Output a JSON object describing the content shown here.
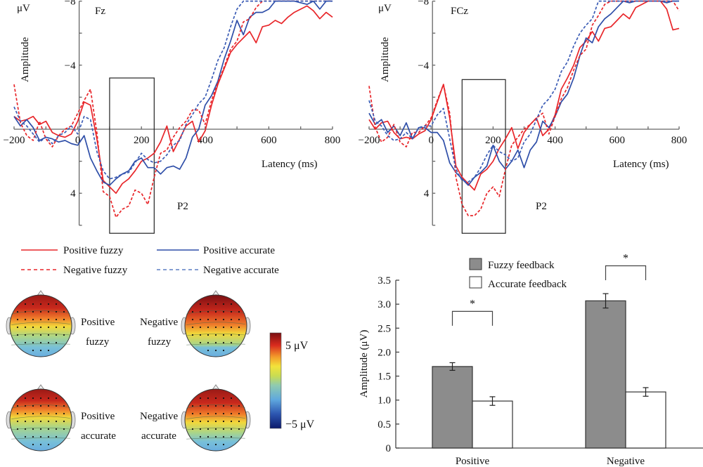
{
  "chart_data": [
    {
      "type": "line",
      "panel": "erp-fz",
      "title": "Fz",
      "xlabel": "Latency (ms)",
      "ylabel": "Amplitude",
      "yunit": "μV",
      "xlim": [
        -200,
        800
      ],
      "ylim": [
        7,
        -8
      ],
      "y_inverted": true,
      "x_ticks": [
        -200,
        0,
        200,
        400,
        600,
        800
      ],
      "x_tick_labels": [
        "−200",
        "0",
        "200",
        "400",
        "600",
        "800"
      ],
      "y_tick_labels": [
        {
          "v": -8,
          "t": "−8"
        },
        {
          "v": -4,
          "t": "−4"
        },
        {
          "v": 4,
          "t": "4"
        }
      ],
      "y_minor_ticks": [
        -8,
        -6,
        -4,
        -2,
        2,
        4,
        6
      ],
      "annotation": "P2",
      "window_ms": [
        100,
        240
      ],
      "window_uv": [
        -3.2,
        6.5
      ],
      "x": [
        -200,
        -180,
        -160,
        -140,
        -120,
        -100,
        -80,
        -60,
        -40,
        -20,
        0,
        20,
        40,
        60,
        80,
        100,
        120,
        140,
        160,
        180,
        200,
        220,
        240,
        260,
        280,
        300,
        320,
        340,
        360,
        380,
        400,
        420,
        440,
        460,
        480,
        500,
        520,
        540,
        560,
        580,
        600,
        620,
        640,
        660,
        680,
        700,
        720,
        740,
        760,
        780,
        800
      ],
      "series": [
        {
          "name": "Positive fuzzy",
          "color": "#e8262a",
          "dash": false,
          "values": [
            -0.8,
            -0.5,
            -0.6,
            -0.8,
            -0.3,
            -0.5,
            0.2,
            0.4,
            0.5,
            0.3,
            -0.5,
            -1.7,
            -1.5,
            0.6,
            3.2,
            3.6,
            4.0,
            3.4,
            3.1,
            2.6,
            2.0,
            1.8,
            1.5,
            0.8,
            -0.2,
            1.4,
            0.6,
            -0.2,
            -0.5,
            0.8,
            0.1,
            -1.5,
            -2.8,
            -3.8,
            -4.8,
            -5.3,
            -5.7,
            -6.1,
            -5.4,
            -6.4,
            -6.5,
            -6.8,
            -6.6,
            -7.0,
            -7.3,
            -7.5,
            -7.7,
            -7.4,
            -6.9,
            -7.3,
            -7.0
          ]
        },
        {
          "name": "Positive accurate",
          "color": "#2e4ea8",
          "dash": false,
          "values": [
            -0.8,
            -0.2,
            -0.6,
            -0.1,
            0.7,
            0.5,
            0.6,
            0.8,
            0.7,
            0.9,
            1.0,
            0.4,
            1.8,
            2.6,
            3.3,
            3.5,
            3.1,
            2.8,
            2.6,
            2.0,
            1.8,
            2.4,
            2.4,
            2.8,
            2.4,
            2.3,
            2.5,
            1.8,
            0.5,
            0.0,
            -1.5,
            -2.1,
            -3.0,
            -4.4,
            -5.5,
            -6.8,
            -5.9,
            -7.0,
            -7.3,
            -7.3,
            -7.5,
            -8.0,
            -8.1,
            -8.0,
            -8.0,
            -7.9,
            -7.8,
            -8.0,
            -7.5,
            -8.0,
            -8.5
          ]
        },
        {
          "name": "Negative fuzzy",
          "color": "#e8262a",
          "dash": true,
          "values": [
            -2.8,
            -0.4,
            0.4,
            0.7,
            -0.5,
            0.6,
            1.1,
            0.4,
            0.0,
            -0.2,
            -1.0,
            -1.8,
            -2.5,
            0.2,
            3.9,
            4.2,
            5.5,
            5.0,
            4.8,
            3.8,
            4.0,
            4.7,
            3.0,
            1.5,
            1.3,
            0.5,
            -0.1,
            -0.5,
            -1.2,
            -1.2,
            -0.3,
            -1.8,
            -2.9,
            -3.9,
            -5.0,
            -5.5,
            -6.7,
            -6.9,
            -7.6,
            -8.2,
            -8.2,
            -8.8,
            -8.6,
            -8.9,
            -8.8,
            -9.0,
            -8.8,
            -8.9,
            -8.6,
            -8.9,
            -8.2
          ]
        },
        {
          "name": "Negative accurate",
          "color": "#2e4ea8",
          "dash": true,
          "values": [
            -1.4,
            -0.5,
            -0.2,
            0.3,
            0.8,
            0.5,
            0.9,
            0.4,
            0.2,
            -0.2,
            0.3,
            -0.8,
            -0.6,
            1.4,
            2.6,
            3.1,
            3.0,
            2.8,
            2.7,
            2.1,
            1.5,
            1.9,
            2.1,
            2.0,
            1.6,
            1.0,
            0.7,
            -0.3,
            -0.9,
            -1.6,
            -2.0,
            -3.1,
            -4.3,
            -5.1,
            -6.4,
            -7.5,
            -8.6,
            -8.6,
            -8.7,
            -8.8,
            -8.9,
            -8.8,
            -8.8,
            -8.7,
            -8.9,
            -8.9,
            -8.8,
            -8.9,
            -8.9,
            -8.8,
            -8.9
          ]
        }
      ]
    },
    {
      "type": "line",
      "panel": "erp-fcz",
      "title": "FCz",
      "xlabel": "Latency (ms)",
      "ylabel": "Amplitude",
      "yunit": "μV",
      "xlim": [
        -200,
        800
      ],
      "ylim": [
        7,
        -8
      ],
      "y_inverted": true,
      "x_ticks": [
        -200,
        0,
        200,
        400,
        600,
        800
      ],
      "x_tick_labels": [
        "−200",
        "0",
        "200",
        "400",
        "600",
        "800"
      ],
      "y_tick_labels": [
        {
          "v": -8,
          "t": "−8"
        },
        {
          "v": -4,
          "t": "−4"
        },
        {
          "v": 4,
          "t": "4"
        }
      ],
      "y_minor_ticks": [
        -8,
        -6,
        -4,
        -2,
        2,
        4,
        6
      ],
      "annotation": "P2",
      "window_ms": [
        100,
        240
      ],
      "window_uv": [
        -3.1,
        6.5
      ],
      "x": [
        -200,
        -180,
        -160,
        -140,
        -120,
        -100,
        -80,
        -60,
        -40,
        -20,
        0,
        20,
        40,
        60,
        80,
        100,
        120,
        140,
        160,
        180,
        200,
        220,
        240,
        260,
        280,
        300,
        320,
        340,
        360,
        380,
        400,
        420,
        440,
        460,
        480,
        500,
        520,
        540,
        560,
        580,
        600,
        620,
        640,
        660,
        680,
        700,
        720,
        740,
        760,
        780,
        800
      ],
      "series": [
        {
          "name": "Positive fuzzy",
          "color": "#e8262a",
          "dash": false,
          "values": [
            -0.6,
            0.0,
            -0.4,
            -0.5,
            0.2,
            0.6,
            0.5,
            0.6,
            0.3,
            0.1,
            -0.6,
            -1.7,
            -2.8,
            -0.7,
            2.3,
            3.0,
            3.4,
            3.8,
            2.8,
            2.5,
            2.0,
            1.2,
            0.6,
            -0.1,
            1.2,
            0.2,
            -0.3,
            -0.7,
            0.4,
            0.0,
            -0.9,
            -2.5,
            -3.2,
            -4.0,
            -5.1,
            -5.5,
            -6.1,
            -5.5,
            -6.3,
            -6.4,
            -6.8,
            -7.2,
            -6.9,
            -7.6,
            -7.8,
            -8.0,
            -8.0,
            -8.1,
            -7.5,
            -6.2,
            -6.3
          ]
        },
        {
          "name": "Positive accurate",
          "color": "#2e4ea8",
          "dash": false,
          "values": [
            -1.0,
            -0.3,
            -0.6,
            0.2,
            -0.2,
            0.4,
            -0.4,
            0.6,
            -0.1,
            -0.1,
            0.2,
            0.2,
            0.7,
            2.1,
            2.7,
            3.1,
            3.5,
            3.0,
            2.7,
            2.3,
            1.0,
            2.0,
            2.5,
            2.0,
            1.3,
            2.4,
            1.3,
            0.8,
            -0.5,
            -0.1,
            -0.8,
            -1.7,
            -2.2,
            -3.2,
            -4.6,
            -5.7,
            -5.4,
            -6.4,
            -6.9,
            -7.2,
            -7.6,
            -8.2,
            -7.9,
            -8.2,
            -8.7,
            -8.5,
            -8.0,
            -8.1,
            -7.9,
            -8.1,
            -8.1
          ]
        },
        {
          "name": "Negative fuzzy",
          "color": "#e8262a",
          "dash": true,
          "values": [
            -2.7,
            -0.1,
            0.8,
            0.5,
            -0.3,
            0.8,
            1.1,
            0.2,
            0.2,
            -0.2,
            -0.7,
            -1.8,
            -2.8,
            -1.0,
            3.0,
            4.7,
            5.4,
            5.4,
            5.0,
            4.0,
            3.6,
            4.2,
            2.5,
            1.0,
            0.5,
            0.0,
            -0.3,
            -0.7,
            -1.0,
            0.3,
            -0.8,
            -1.9,
            -2.6,
            -3.7,
            -4.6,
            -5.0,
            -6.5,
            -7.1,
            -7.8,
            -8.5,
            -9.0,
            -8.8,
            -8.6,
            -8.7,
            -8.6,
            -8.3,
            -8.6,
            -8.8,
            -8.4,
            -8.4,
            -7.4
          ]
        },
        {
          "name": "Negative accurate",
          "color": "#2e4ea8",
          "dash": true,
          "values": [
            -1.8,
            -0.5,
            -0.2,
            0.4,
            0.7,
            0.6,
            0.2,
            0.6,
            -0.1,
            -0.2,
            -0.2,
            -0.9,
            -1.3,
            0.6,
            2.5,
            3.2,
            3.3,
            3.0,
            2.4,
            1.6,
            1.0,
            1.4,
            1.6,
            2.0,
            1.8,
            0.8,
            0.3,
            -0.6,
            -1.5,
            -1.9,
            -2.5,
            -3.6,
            -4.2,
            -5.2,
            -6.0,
            -6.5,
            -6.9,
            -8.0,
            -8.7,
            -8.9,
            -8.9,
            -9.0,
            -9.2,
            -9.1,
            -9.0,
            -9.2,
            -8.8,
            -8.7,
            -8.3,
            -8.5,
            -9.0
          ]
        }
      ]
    },
    {
      "type": "bar",
      "panel": "p2-amplitude",
      "title": "",
      "xlabel": "",
      "ylabel": "Amplitude (μV)",
      "ylim": [
        0,
        3.5
      ],
      "y_ticks": [
        0,
        0.5,
        1.0,
        1.5,
        2.0,
        2.5,
        3.0,
        3.5
      ],
      "y_tick_labels": [
        "0",
        "0.5",
        "1.0",
        "1.5",
        "2.0",
        "2.5",
        "3.0",
        "3.5"
      ],
      "categories": [
        "Positive",
        "Negative"
      ],
      "legend_position": "top-left",
      "series": [
        {
          "name": "Fuzzy feedback",
          "color": "#8c8c8c",
          "values": [
            1.7,
            3.07
          ],
          "errors": [
            0.08,
            0.15
          ]
        },
        {
          "name": "Accurate feedback",
          "color": "#ffffff",
          "values": [
            0.98,
            1.17
          ],
          "errors": [
            0.09,
            0.09
          ]
        }
      ],
      "significance": [
        {
          "category": "Positive",
          "label": "*",
          "bracket_y": 2.55,
          "bracket_top": 2.85
        },
        {
          "category": "Negative",
          "label": "*",
          "bracket_y": 3.5,
          "bracket_top": 3.8
        }
      ]
    }
  ],
  "legend": {
    "items": [
      {
        "label": "Positive fuzzy",
        "color": "#e8262a",
        "dash": false
      },
      {
        "label": "Positive accurate",
        "color": "#2e4ea8",
        "dash": false
      },
      {
        "label": "Negative fuzzy",
        "color": "#e8262a",
        "dash": true
      },
      {
        "label": "Negative accurate",
        "color": "#2e4ea8",
        "dash": true
      }
    ]
  },
  "topomaps": {
    "maps": [
      {
        "label_line1": "Positive",
        "label_line2": "fuzzy",
        "frontal_intensity": 0.72
      },
      {
        "label_line1": "Negative",
        "label_line2": "fuzzy",
        "frontal_intensity": 0.95
      },
      {
        "label_line1": "Positive",
        "label_line2": "accurate",
        "frontal_intensity": 0.62
      },
      {
        "label_line1": "Negative",
        "label_line2": "accurate",
        "frontal_intensity": 0.78
      }
    ],
    "colorbar": {
      "max_label": "5 μV",
      "min_label": "−5 μV",
      "max_value": 5,
      "min_value": -5
    }
  }
}
